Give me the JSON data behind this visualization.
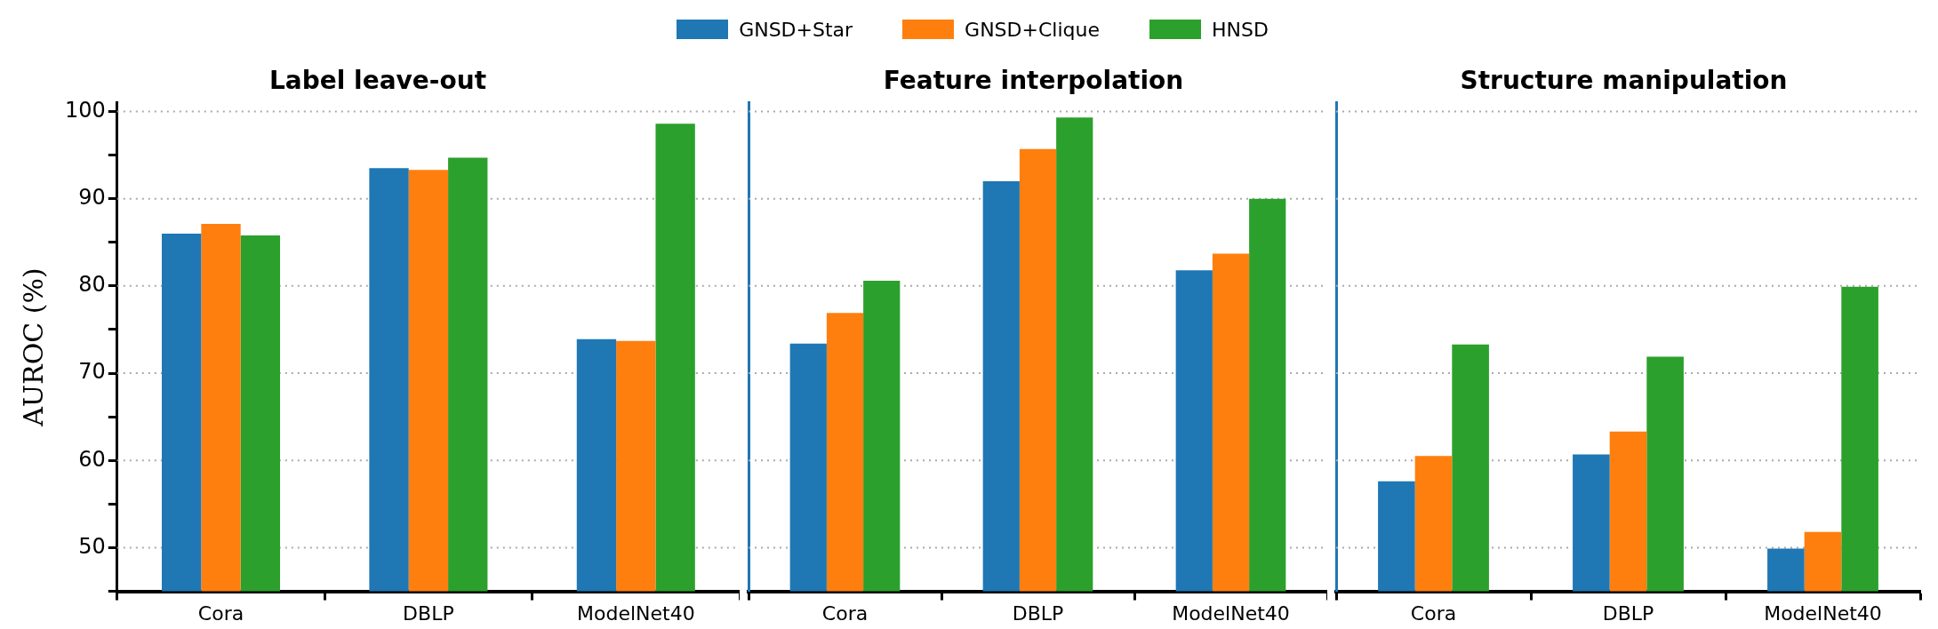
{
  "chart_data": [
    {
      "type": "bar",
      "title": "Label leave-out",
      "ylabel": "AUROC (%)",
      "categories": [
        "Cora",
        "DBLP",
        "ModelNet40"
      ],
      "series": [
        {
          "name": "GNSD+Star",
          "color": "#1f77b4",
          "values": [
            86.0,
            93.5,
            73.9
          ]
        },
        {
          "name": "GNSD+Clique",
          "color": "#ff7f0e",
          "values": [
            87.1,
            93.3,
            73.7
          ]
        },
        {
          "name": "HNSD",
          "color": "#2ca02c",
          "values": [
            85.8,
            94.7,
            98.6
          ]
        }
      ],
      "ylim": [
        45,
        101
      ],
      "yticks": [
        {
          "value": 45,
          "label": null
        },
        50,
        {
          "value": 55,
          "label": null
        },
        60,
        {
          "value": 65,
          "label": null
        },
        70,
        {
          "value": 75,
          "label": null
        },
        80,
        {
          "value": 85,
          "label": null
        },
        90,
        {
          "value": 95,
          "label": null
        },
        100
      ],
      "grid": "y",
      "legend": "top"
    },
    {
      "type": "bar",
      "title": "Feature interpolation",
      "categories": [
        "Cora",
        "DBLP",
        "ModelNet40"
      ],
      "series": [
        {
          "color": "#1f77b4",
          "values": [
            73.4,
            92.0,
            81.8
          ]
        },
        {
          "color": "#ff7f0e",
          "values": [
            76.9,
            95.7,
            83.7
          ]
        },
        {
          "color": "#2ca02c",
          "values": [
            80.6,
            99.3,
            90.0
          ]
        }
      ],
      "ylim": [
        45,
        101
      ],
      "yticks": [
        50,
        60,
        70,
        80,
        90,
        100
      ],
      "grid": "y",
      "tick_labels": "x"
    },
    {
      "type": "bar",
      "title": "Structure manipulation",
      "categories": [
        "Cora",
        "DBLP",
        "ModelNet40"
      ],
      "series": [
        {
          "color": "#1f77b4",
          "values": [
            57.6,
            60.7,
            49.9
          ]
        },
        {
          "color": "#ff7f0e",
          "values": [
            60.5,
            63.3,
            51.8
          ]
        },
        {
          "color": "#2ca02c",
          "values": [
            73.3,
            71.9,
            79.9
          ]
        }
      ],
      "ylim": [
        45,
        101
      ],
      "yticks": [
        50,
        60,
        70,
        80,
        90,
        100
      ],
      "grid": "y",
      "tick_labels": "x"
    }
  ]
}
